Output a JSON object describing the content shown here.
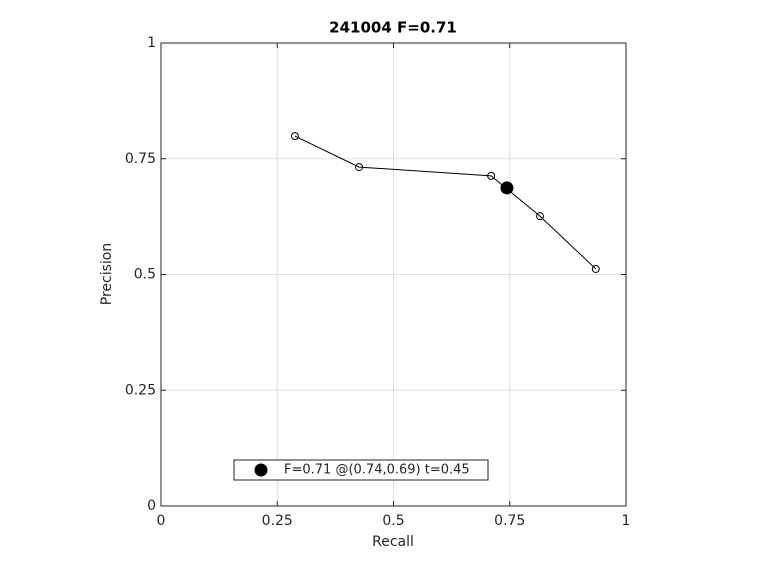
{
  "chart_data": {
    "type": "line",
    "title": "241004 F=0.71",
    "x_label": "Recall",
    "y_label": "Precision",
    "series": [
      {
        "color": "#000000",
        "marker": "open-circle",
        "x": [
          0.288,
          0.426,
          0.71,
          0.815,
          0.935
        ],
        "values": [
          0.799,
          0.732,
          0.713,
          0.626,
          0.512
        ]
      },
      {
        "name": "F=0.71 @(0.74,0.69) t=0.45",
        "color": "#000000",
        "marker": "filled-circle",
        "x": [
          0.744
        ],
        "values": [
          0.687
        ]
      }
    ],
    "xlim": [
      0,
      1
    ],
    "ylim": [
      0,
      1
    ],
    "xticks": [
      0,
      0.25,
      0.5,
      0.75,
      1
    ],
    "yticks": [
      0,
      0.25,
      0.5,
      0.75,
      1
    ],
    "grid": true,
    "legend": "lower left"
  }
}
